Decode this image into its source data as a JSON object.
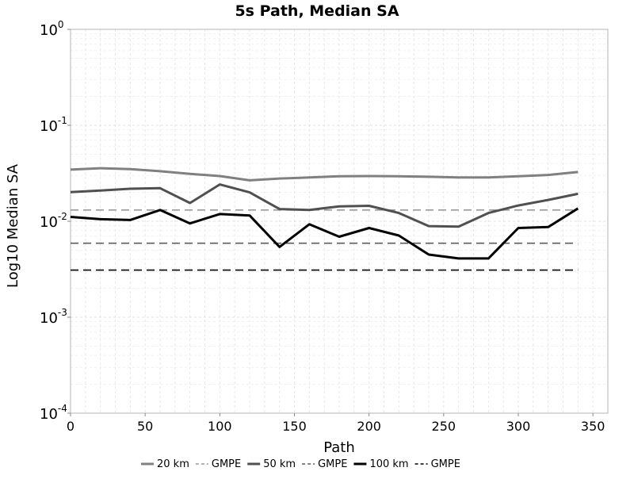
{
  "chart_data": {
    "type": "line",
    "title": "5s Path, Median SA",
    "xlabel": "Path",
    "ylabel": "Log10 Median SA",
    "xlim": [
      0,
      360
    ],
    "ylim": [
      0.0001,
      1
    ],
    "yscale": "log",
    "x_ticks": [
      0,
      50,
      100,
      150,
      200,
      250,
      300,
      350
    ],
    "x_tick_labels": [
      "0",
      "50",
      "100",
      "150",
      "200",
      "250",
      "300",
      "350"
    ],
    "y_ticks": [
      {
        "value": 1,
        "base": "10",
        "exp": "0"
      },
      {
        "value": 0.1,
        "base": "10",
        "exp": "-1"
      },
      {
        "value": 0.01,
        "base": "10",
        "exp": "-2"
      },
      {
        "value": 0.001,
        "base": "10",
        "exp": "-3"
      },
      {
        "value": 0.0001,
        "base": "10",
        "exp": "-4"
      }
    ],
    "grid": true,
    "legend_position": "bottom",
    "x": [
      0,
      20,
      40,
      60,
      80,
      100,
      120,
      140,
      160,
      180,
      200,
      220,
      240,
      260,
      280,
      300,
      320,
      340
    ],
    "series": [
      {
        "name": "20 km",
        "color": "#808080",
        "dashed": false,
        "values": [
          0.0345,
          0.0357,
          0.035,
          0.0332,
          0.0312,
          0.0296,
          0.0267,
          0.0279,
          0.0286,
          0.0294,
          0.0296,
          0.0294,
          0.0291,
          0.0286,
          0.0286,
          0.0294,
          0.0304,
          0.0326
        ]
      },
      {
        "name": "GMPE",
        "color": "#999999",
        "dashed": true,
        "constant": 0.0131,
        "x_range": [
          0,
          340
        ]
      },
      {
        "name": "50 km",
        "color": "#505050",
        "dashed": false,
        "values": [
          0.0201,
          0.0209,
          0.0218,
          0.0221,
          0.0155,
          0.0242,
          0.02,
          0.0134,
          0.0131,
          0.0143,
          0.0145,
          0.0122,
          0.0089,
          0.0088,
          0.0122,
          0.0146,
          0.0167,
          0.0193
        ]
      },
      {
        "name": "GMPE",
        "color": "#5c5c5c",
        "dashed": true,
        "constant": 0.0059,
        "x_range": [
          0,
          340
        ]
      },
      {
        "name": "100 km",
        "color": "#000000",
        "dashed": false,
        "values": [
          0.0111,
          0.0105,
          0.0103,
          0.0131,
          0.0095,
          0.0119,
          0.0115,
          0.0054,
          0.0093,
          0.0069,
          0.0085,
          0.0071,
          0.0045,
          0.0041,
          0.0041,
          0.0085,
          0.0087,
          0.0136
        ]
      },
      {
        "name": "GMPE",
        "color": "#000000",
        "dashed": true,
        "constant": 0.0031,
        "x_range": [
          0,
          340
        ]
      }
    ]
  }
}
